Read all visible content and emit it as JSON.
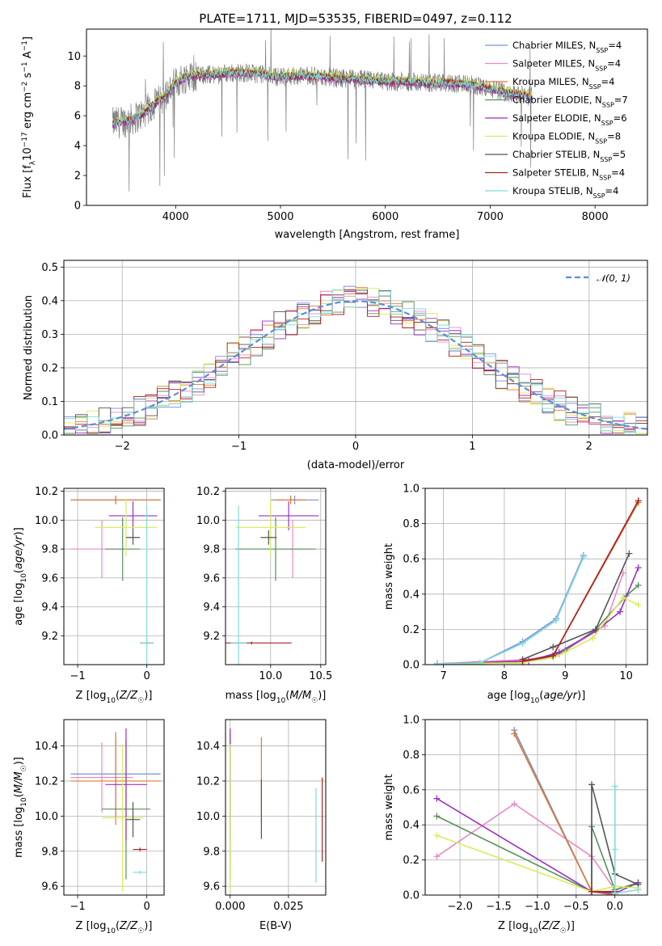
{
  "figure_title": "PLATE=1711, MJD=53535, FIBERID=0497, z=0.112",
  "colors": {
    "Chabrier MILES": "#7b8fd8",
    "Salpeter MILES": "#e88ac6",
    "Kroupa MILES": "#e07a2e",
    "Chabrier ELODIE": "#5a8f5a",
    "Salpeter ELODIE": "#9b30c0",
    "Kroupa ELODIE": "#d8ec5a",
    "Chabrier STELIB": "#555555",
    "Salpeter STELIB": "#aa2020",
    "Kroupa STELIB": "#7fdcdc",
    "observed": "#808080",
    "normal_fit": "#5b8fd6"
  },
  "chart_data": [
    {
      "id": "spectrum",
      "type": "line",
      "title": "PLATE=1711, MJD=53535, FIBERID=0497, z=0.112",
      "xlabel": "wavelength [Angstrom, rest frame]",
      "ylabel": "Flux [f_λ 10^-17 erg cm^-2 s^-1 A^-1]",
      "xlim": [
        3150,
        8500
      ],
      "ylim": [
        0,
        11.8
      ],
      "xticks": [
        4000,
        5000,
        6000,
        7000,
        8000
      ],
      "yticks": [
        0,
        2,
        4,
        6,
        8,
        10
      ],
      "grid": false,
      "legend_position": "upper right",
      "legend": [
        "Chabrier MILES, N_SSP=4",
        "Salpeter MILES, N_SSP=4",
        "Kroupa MILES, N_SSP=4",
        "Chabrier ELODIE, N_SSP=7",
        "Salpeter ELODIE, N_SSP=6",
        "Kroupa ELODIE, N_SSP=8",
        "Chabrier STELIB, N_SSP=5",
        "Salpeter STELIB, N_SSP=4",
        "Kroupa STELIB, N_SSP=4"
      ],
      "series_keys": [
        "Chabrier MILES",
        "Salpeter MILES",
        "Kroupa MILES",
        "Chabrier ELODIE",
        "Salpeter ELODIE",
        "Kroupa ELODIE",
        "Chabrier STELIB",
        "Salpeter STELIB",
        "Kroupa STELIB"
      ],
      "continuum_x": [
        3400,
        3500,
        3600,
        3700,
        3800,
        3900,
        4000,
        4100,
        4200,
        4400,
        4600,
        4800,
        5000,
        5200,
        5400,
        5600,
        5800,
        6000,
        6200,
        6400,
        6600,
        6800,
        7000,
        7200,
        7400
      ],
      "continuum_y": [
        5.5,
        5.6,
        5.8,
        6.2,
        6.8,
        7.3,
        8.2,
        8.6,
        8.7,
        8.8,
        8.9,
        8.8,
        8.6,
        8.7,
        8.6,
        8.5,
        8.4,
        8.3,
        8.3,
        8.2,
        8.2,
        8.1,
        7.8,
        7.5,
        7.3
      ],
      "observed_x_range": [
        3400,
        7400
      ]
    },
    {
      "id": "residuals",
      "type": "histogram",
      "xlabel": "(data-model)/error",
      "ylabel": "Normed distribution",
      "xlim": [
        -2.5,
        2.5
      ],
      "ylim": [
        0,
        0.52
      ],
      "xticks": [
        -2,
        -1,
        0,
        1,
        2
      ],
      "yticks": [
        0.0,
        0.1,
        0.2,
        0.3,
        0.4,
        0.5
      ],
      "grid": true,
      "legend_position": "upper right",
      "legend": [
        "𝒩(0, 1)"
      ],
      "bin_start": -2.5,
      "bin_width": 0.1,
      "normal": {
        "mu": 0,
        "sigma": 1
      }
    },
    {
      "id": "age_vs_Z",
      "type": "errorbar",
      "xlabel": "Z [log10(Z/Z☉)]",
      "ylabel": "age [log10(age/yr)]",
      "xlim": [
        -1.2,
        0.25
      ],
      "ylim": [
        9.0,
        10.22
      ],
      "xticks": [
        -1,
        0
      ],
      "yticks": [
        9.2,
        9.4,
        9.6,
        9.8,
        10.0,
        10.2
      ],
      "grid": true,
      "points": [
        {
          "series": "Chabrier MILES",
          "x": -0.45,
          "y": 10.14,
          "xerr": 0.65,
          "yerr": 0.03
        },
        {
          "series": "Salpeter MILES",
          "x": -0.65,
          "y": 9.8,
          "xerr": 0.45,
          "yerr": 0.2
        },
        {
          "series": "Kroupa MILES",
          "x": -0.45,
          "y": 10.14,
          "xerr": 0.65,
          "yerr": 0.03
        },
        {
          "series": "Chabrier ELODIE",
          "x": -0.35,
          "y": 9.8,
          "xerr": 0.25,
          "yerr": 0.22
        },
        {
          "series": "Salpeter ELODIE",
          "x": -0.2,
          "y": 10.03,
          "xerr": 0.35,
          "yerr": 0.1
        },
        {
          "series": "Kroupa ELODIE",
          "x": -0.3,
          "y": 9.95,
          "xerr": 0.45,
          "yerr": 0.2
        },
        {
          "series": "Chabrier STELIB",
          "x": -0.2,
          "y": 9.88,
          "xerr": 0.1,
          "yerr": 0.05
        },
        {
          "series": "Salpeter STELIB",
          "x": 0.0,
          "y": 9.15,
          "xerr": 0.1,
          "yerr": 0.01
        },
        {
          "series": "Kroupa STELIB",
          "x": 0.0,
          "y": 9.15,
          "xerr": 0.1,
          "yerr": 0.95
        }
      ]
    },
    {
      "id": "age_vs_mass",
      "type": "errorbar",
      "xlabel": "mass [log10(M/M☉)]",
      "ylabel": "",
      "xlim": [
        9.55,
        10.55
      ],
      "ylim": [
        9.0,
        10.22
      ],
      "xticks": [
        10.0,
        10.5
      ],
      "yticks": [
        9.2,
        9.4,
        9.6,
        9.8,
        10.0,
        10.2
      ],
      "grid": true,
      "points": [
        {
          "series": "Chabrier MILES",
          "x": 10.24,
          "y": 10.14,
          "xerr": 0.24,
          "yerr": 0.03
        },
        {
          "series": "Salpeter MILES",
          "x": 10.22,
          "y": 9.8,
          "xerr": 0.2,
          "yerr": 0.2
        },
        {
          "series": "Kroupa MILES",
          "x": 10.2,
          "y": 10.14,
          "xerr": 0.15,
          "yerr": 0.03
        },
        {
          "series": "Chabrier ELODIE",
          "x": 10.05,
          "y": 9.8,
          "xerr": 0.4,
          "yerr": 0.22
        },
        {
          "series": "Salpeter ELODIE",
          "x": 10.18,
          "y": 10.03,
          "xerr": 0.3,
          "yerr": 0.1
        },
        {
          "series": "Kroupa ELODIE",
          "x": 10.0,
          "y": 9.95,
          "xerr": 0.35,
          "yerr": 0.2
        },
        {
          "series": "Chabrier STELIB",
          "x": 9.98,
          "y": 9.88,
          "xerr": 0.08,
          "yerr": 0.05
        },
        {
          "series": "Salpeter STELIB",
          "x": 9.81,
          "y": 9.15,
          "xerr": 0.4,
          "yerr": 0.01
        },
        {
          "series": "Kroupa STELIB",
          "x": 9.68,
          "y": 9.15,
          "xerr": 0.08,
          "yerr": 0.95
        }
      ]
    },
    {
      "id": "massweight_vs_age",
      "type": "line",
      "xlabel": "age [log10(age/yr)]",
      "ylabel": "mass weight",
      "xlim": [
        6.7,
        10.35
      ],
      "ylim": [
        0,
        1.0
      ],
      "xticks": [
        7,
        8,
        9,
        10
      ],
      "yticks": [
        0.0,
        0.2,
        0.4,
        0.6,
        0.8,
        1.0
      ],
      "grid": true,
      "series": [
        {
          "key": "Chabrier MILES",
          "x": [
            6.9,
            7.6,
            8.3,
            8.85,
            9.3
          ],
          "y": [
            0.005,
            0.01,
            0.13,
            0.26,
            0.62
          ]
        },
        {
          "key": "Salpeter MILES",
          "x": [
            6.9,
            8.4,
            8.9,
            9.65,
            9.95
          ],
          "y": [
            0.005,
            0.03,
            0.06,
            0.22,
            0.52
          ]
        },
        {
          "key": "Kroupa MILES",
          "x": [
            6.9,
            8.3,
            8.8,
            10.2
          ],
          "y": [
            0.005,
            0.02,
            0.05,
            0.92
          ]
        },
        {
          "key": "Chabrier ELODIE",
          "x": [
            6.9,
            8.3,
            8.8,
            9.0,
            9.5,
            10.0,
            10.2
          ],
          "y": [
            0.005,
            0.01,
            0.05,
            0.08,
            0.2,
            0.39,
            0.45
          ]
        },
        {
          "key": "Salpeter ELODIE",
          "x": [
            6.9,
            8.4,
            8.9,
            9.5,
            9.9,
            10.2
          ],
          "y": [
            0.005,
            0.02,
            0.07,
            0.19,
            0.3,
            0.55
          ]
        },
        {
          "key": "Kroupa ELODIE",
          "x": [
            6.9,
            8.3,
            8.8,
            9.0,
            9.45,
            9.95,
            10.2
          ],
          "y": [
            0.005,
            0.01,
            0.04,
            0.07,
            0.15,
            0.38,
            0.34
          ]
        },
        {
          "key": "Chabrier STELIB",
          "x": [
            8.3,
            8.8,
            9.5,
            10.05
          ],
          "y": [
            0.03,
            0.1,
            0.2,
            0.63
          ]
        },
        {
          "key": "Salpeter STELIB",
          "x": [
            8.3,
            8.8,
            10.2
          ],
          "y": [
            0.02,
            0.05,
            0.93
          ]
        },
        {
          "key": "Kroupa STELIB",
          "x": [
            6.9,
            7.6,
            8.3,
            8.85,
            9.3
          ],
          "y": [
            0.005,
            0.01,
            0.12,
            0.25,
            0.61
          ]
        }
      ]
    },
    {
      "id": "mass_vs_Z",
      "type": "errorbar",
      "xlabel": "Z [log10(Z/Z☉)]",
      "ylabel": "mass [log10(M/M☉)]",
      "xlim": [
        -1.2,
        0.25
      ],
      "ylim": [
        9.55,
        10.55
      ],
      "xticks": [
        -1,
        0
      ],
      "yticks": [
        9.6,
        9.8,
        10.0,
        10.2,
        10.4
      ],
      "grid": true,
      "points": [
        {
          "series": "Chabrier MILES",
          "x": -0.45,
          "y": 10.24,
          "xerr": 0.65,
          "yerr": 0.24
        },
        {
          "series": "Salpeter MILES",
          "x": -0.65,
          "y": 10.22,
          "xerr": 0.45,
          "yerr": 0.2
        },
        {
          "series": "Kroupa MILES",
          "x": -0.45,
          "y": 10.2,
          "xerr": 0.65,
          "yerr": 0.25
        },
        {
          "series": "Chabrier ELODIE",
          "x": -0.3,
          "y": 10.04,
          "xerr": 0.35,
          "yerr": 0.4
        },
        {
          "series": "Salpeter ELODIE",
          "x": -0.3,
          "y": 10.18,
          "xerr": 0.3,
          "yerr": 0.32
        },
        {
          "series": "Kroupa ELODIE",
          "x": -0.35,
          "y": 9.99,
          "xerr": 0.3,
          "yerr": 0.42
        },
        {
          "series": "Chabrier STELIB",
          "x": -0.2,
          "y": 9.98,
          "xerr": 0.1,
          "yerr": 0.1
        },
        {
          "series": "Salpeter STELIB",
          "x": -0.1,
          "y": 9.81,
          "xerr": 0.1,
          "yerr": 0.01
        },
        {
          "series": "Kroupa STELIB",
          "x": -0.1,
          "y": 9.68,
          "xerr": 0.1,
          "yerr": 0.01
        }
      ]
    },
    {
      "id": "mass_vs_ebv",
      "type": "errorbar",
      "xlabel": "E(B-V)",
      "ylabel": "",
      "xlim": [
        -0.002,
        0.041
      ],
      "ylim": [
        9.55,
        10.55
      ],
      "xticks": [
        0.0,
        0.025
      ],
      "yticks": [
        9.6,
        9.8,
        10.0,
        10.2,
        10.4
      ],
      "grid": true,
      "points": [
        {
          "series": "Chabrier MILES",
          "x": 0.0,
          "y": 10.24,
          "xerr": 0.0,
          "yerr": 0.24
        },
        {
          "series": "Salpeter MILES",
          "x": 0.0,
          "y": 10.22,
          "xerr": 0.0,
          "yerr": 0.2
        },
        {
          "series": "Kroupa MILES",
          "x": 0.0134,
          "y": 10.2,
          "xerr": 0.0,
          "yerr": 0.25
        },
        {
          "series": "Chabrier ELODIE",
          "x": 0.0,
          "y": 10.04,
          "xerr": 0.0,
          "yerr": 0.4
        },
        {
          "series": "Salpeter ELODIE",
          "x": 0.0,
          "y": 10.18,
          "xerr": 0.0,
          "yerr": 0.32
        },
        {
          "series": "Kroupa ELODIE",
          "x": 0.0,
          "y": 9.99,
          "xerr": 0.0,
          "yerr": 0.42
        },
        {
          "series": "Chabrier STELIB",
          "x": 0.0134,
          "y": 10.04,
          "xerr": 0.0,
          "yerr": 0.17
        },
        {
          "series": "Salpeter STELIB",
          "x": 0.0395,
          "y": 9.98,
          "xerr": 0.0,
          "yerr": 0.24
        },
        {
          "series": "Kroupa STELIB",
          "x": 0.0368,
          "y": 9.89,
          "xerr": 0.0,
          "yerr": 0.27
        }
      ]
    },
    {
      "id": "massweight_vs_Z",
      "type": "line",
      "xlabel": "Z [log10(Z/Z☉)]",
      "ylabel": "mass weight",
      "xlim": [
        -2.45,
        0.42
      ],
      "ylim": [
        0,
        1.0
      ],
      "xticks": [
        -2.0,
        -1.5,
        -1.0,
        -0.5,
        0.0
      ],
      "yticks": [
        0.0,
        0.2,
        0.4,
        0.6,
        0.8,
        1.0
      ],
      "grid": true,
      "series": [
        {
          "key": "Chabrier MILES",
          "x": [
            -1.3,
            -0.3,
            0.0
          ],
          "y": [
            0.94,
            0.02,
            0.0
          ]
        },
        {
          "key": "Salpeter MILES",
          "x": [
            -2.3,
            -1.3,
            -0.3,
            0.0
          ],
          "y": [
            0.22,
            0.52,
            0.22,
            0.03
          ]
        },
        {
          "key": "Kroupa MILES",
          "x": [
            -1.3,
            -0.3,
            0.0
          ],
          "y": [
            0.92,
            0.02,
            0.0
          ]
        },
        {
          "key": "Chabrier ELODIE",
          "x": [
            -2.3,
            -0.3,
            -0.3,
            0.0,
            0.3
          ],
          "y": [
            0.45,
            0.02,
            0.39,
            0.03,
            0.07
          ]
        },
        {
          "key": "Salpeter ELODIE",
          "x": [
            -2.3,
            -0.3,
            0.0,
            0.3
          ],
          "y": [
            0.55,
            0.02,
            0.01,
            0.07
          ]
        },
        {
          "key": "Kroupa ELODIE",
          "x": [
            -2.3,
            -0.3,
            0.0,
            0.3
          ],
          "y": [
            0.34,
            0.02,
            0.05,
            0.04
          ]
        },
        {
          "key": "Chabrier STELIB",
          "x": [
            -0.3,
            -0.3,
            0.0,
            0.3
          ],
          "y": [
            0.02,
            0.63,
            0.12,
            0.06
          ]
        },
        {
          "key": "Salpeter STELIB",
          "x": [
            -0.3,
            0.0,
            0.0
          ],
          "y": [
            0.02,
            0.02,
            0.01
          ]
        },
        {
          "key": "Kroupa STELIB",
          "x": [
            0.0,
            0.0,
            0.0,
            0.3
          ],
          "y": [
            0.62,
            0.26,
            0.01,
            0.03
          ]
        }
      ]
    }
  ]
}
